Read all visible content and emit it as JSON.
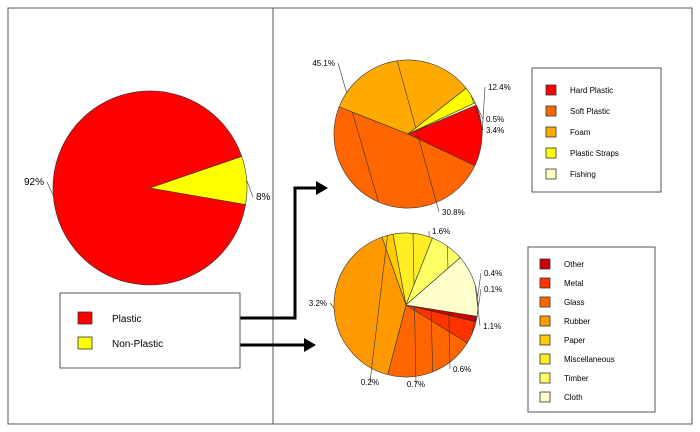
{
  "chart_data": [
    {
      "type": "pie",
      "id": "composition",
      "categories": [
        "Plastic",
        "Non-Plastic"
      ],
      "values": [
        92,
        8
      ],
      "labels": [
        "92%",
        "8%"
      ],
      "colors": [
        "#ff0000",
        "#ffff00"
      ]
    },
    {
      "type": "pie",
      "id": "plastic",
      "categories": [
        "Hard Plastic",
        "Soft Plastic",
        "Foam",
        "Plastic Straps",
        "Fishing"
      ],
      "values": [
        12.4,
        45.1,
        30.8,
        3.4,
        0.5
      ],
      "labels": [
        "12.4%",
        "45.1%",
        "30.8%",
        "3.4%",
        "0.5%"
      ],
      "colors": [
        "#ff0000",
        "#ff6600",
        "#ffaa00",
        "#ffff00",
        "#ffffc0"
      ]
    },
    {
      "type": "pie",
      "id": "nonplastic",
      "categories": [
        "Other",
        "Metal",
        "Glass",
        "Rubber",
        "Paper",
        "Miscellaneous",
        "Timber",
        "Cloth"
      ],
      "values": [
        0.1,
        0.4,
        1.6,
        3.2,
        0.2,
        0.7,
        0.6,
        1.1
      ],
      "labels": [
        "0.1%",
        "0.4%",
        "1.6%",
        "3.2%",
        "0.2%",
        "0.7%",
        "0.6%",
        "1.1%"
      ],
      "colors": [
        "#cc0000",
        "#ff3300",
        "#ff6600",
        "#ff9900",
        "#ffcc00",
        "#ffee22",
        "#ffff66",
        "#ffffcc"
      ]
    }
  ]
}
